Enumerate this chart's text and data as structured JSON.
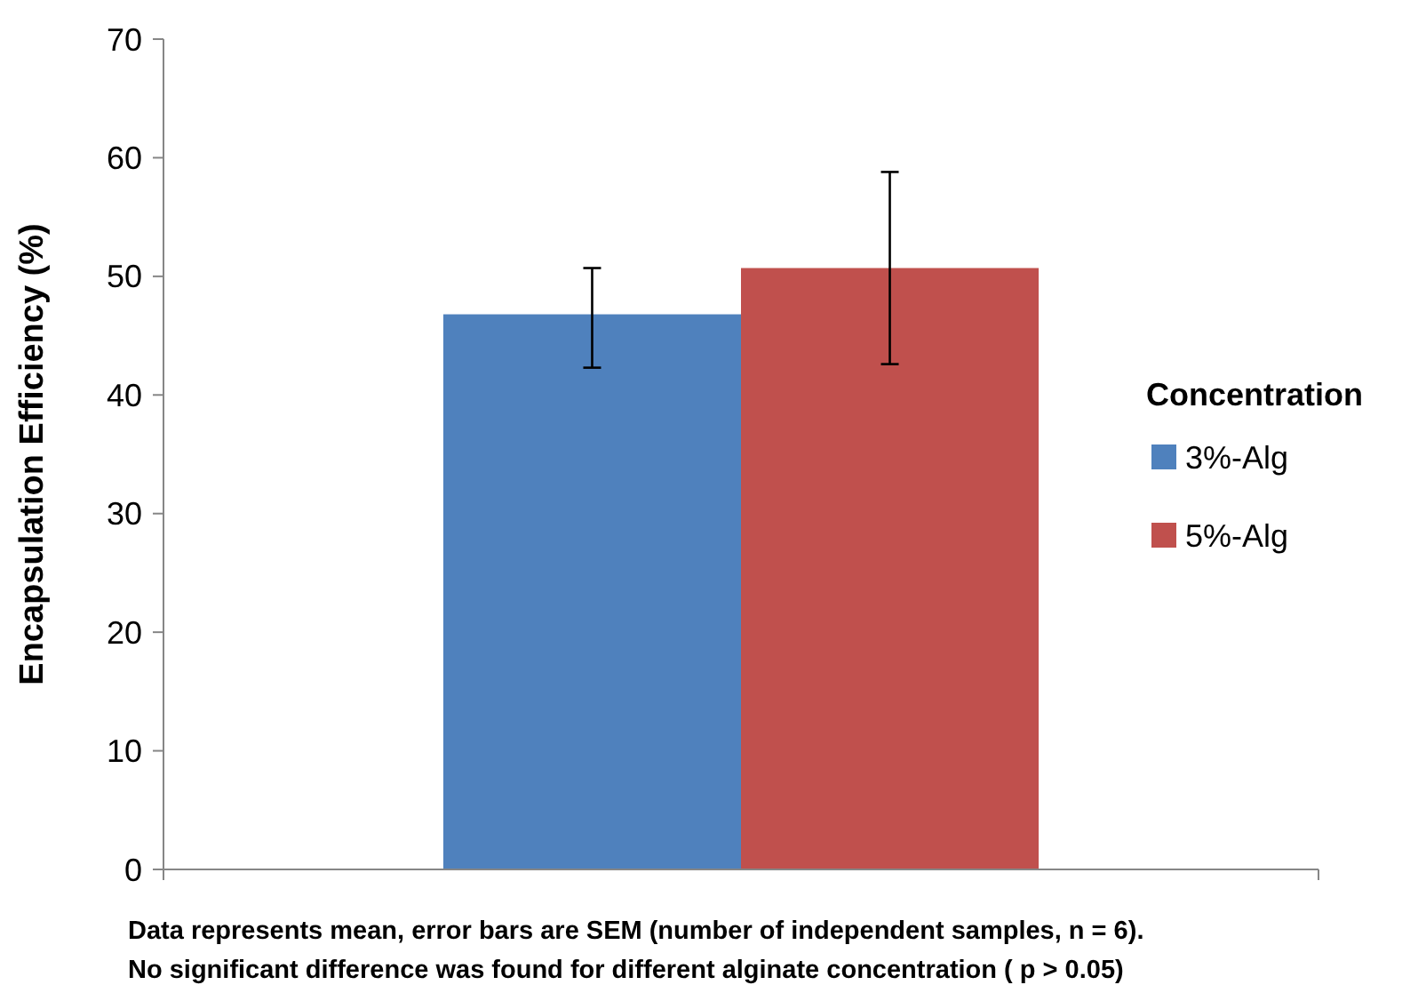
{
  "chart_data": {
    "type": "bar",
    "ylabel": "Encapsulation  Efficiency (%)",
    "legend_title": "Concentration",
    "legend": "right",
    "categories": [
      null
    ],
    "ylim": [
      0,
      70
    ],
    "yticks": [
      0,
      10,
      20,
      30,
      40,
      50,
      60,
      70
    ],
    "series": [
      {
        "name": "3%-Alg",
        "color": "#4f81bd",
        "values": [
          46.8
        ],
        "errors": [
          [
            42.3,
            50.7
          ]
        ]
      },
      {
        "name": "5%-Alg",
        "color": "#c0504d",
        "values": [
          50.7
        ],
        "errors": [
          [
            42.6,
            58.8
          ]
        ]
      }
    ],
    "annotations": [
      "Data represents mean, error bars are SEM (number of independent samples, n = 6).",
      "No significant difference was found for different alginate concentration ( p > 0.05)"
    ]
  }
}
